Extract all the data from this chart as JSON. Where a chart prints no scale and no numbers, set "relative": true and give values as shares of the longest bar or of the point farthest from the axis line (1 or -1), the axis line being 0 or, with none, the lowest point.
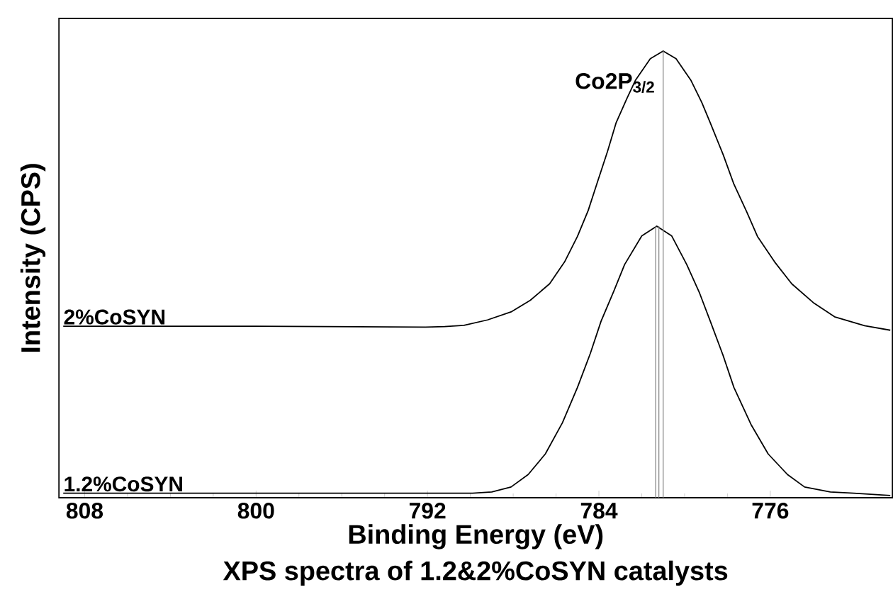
{
  "chart_data": {
    "type": "line",
    "title": "XPS spectra of 1.2&2%CoSYN catalysts",
    "xlabel": "Binding Energy (eV)",
    "ylabel": "Intensity (CPS)",
    "relative": true,
    "xlim": [
      809.2,
      770.3
    ],
    "xticks": [
      808,
      800,
      792,
      784,
      776
    ],
    "annotations": [
      "Co2P$_{3/2}$"
    ],
    "series": [
      {
        "name": "2%CoSYN",
        "color": "#000000",
        "x": [
          809,
          800,
          792.1,
          791.2,
          790.3,
          789.2,
          788.1,
          787.2,
          786.3,
          785.6,
          785.0,
          784.5,
          784.1,
          783.6,
          783.2,
          782.7,
          782.3,
          781.6,
          781.0,
          780.4,
          779.7,
          779.2,
          778.8,
          778.2,
          777.7,
          777.1,
          776.6,
          775.8,
          775.0,
          774.0,
          773.0,
          771.6,
          770.4
        ],
        "values": [
          0.384,
          0.384,
          0.382,
          0.383,
          0.386,
          0.398,
          0.416,
          0.442,
          0.479,
          0.528,
          0.585,
          0.643,
          0.702,
          0.775,
          0.839,
          0.893,
          0.934,
          0.983,
          1.0,
          0.983,
          0.934,
          0.885,
          0.839,
          0.768,
          0.702,
          0.64,
          0.585,
          0.528,
          0.479,
          0.437,
          0.405,
          0.385,
          0.375
        ]
      },
      {
        "name": "1.2%CoSYN",
        "color": "#000000",
        "x": [
          809,
          800,
          789.9,
          789.0,
          788.1,
          787.3,
          786.5,
          785.7,
          785.0,
          784.4,
          783.9,
          783.3,
          782.8,
          782.0,
          781.3,
          780.6,
          779.9,
          779.3,
          778.8,
          778.2,
          777.7,
          776.9,
          776.1,
          775.2,
          774.4,
          773.2,
          772.1,
          770.4
        ],
        "values": [
          0.01,
          0.01,
          0.01,
          0.013,
          0.024,
          0.052,
          0.098,
          0.168,
          0.247,
          0.323,
          0.395,
          0.463,
          0.522,
          0.586,
          0.608,
          0.586,
          0.522,
          0.458,
          0.395,
          0.318,
          0.247,
          0.164,
          0.098,
          0.052,
          0.024,
          0.013,
          0.01,
          0.005
        ]
      },
      {
        "type": "line",
        "color": "#808080",
        "x": [
          781.0,
          781.0
        ],
        "values": [
          1.0,
          0
        ]
      },
      {
        "type": "line",
        "color": "#808080",
        "x": [
          781.35,
          781.35
        ],
        "values": [
          0.608,
          0
        ]
      },
      {
        "type": "line",
        "color": "#808080",
        "x": [
          781.2,
          781.2
        ],
        "values": [
          0.608,
          0
        ]
      }
    ]
  }
}
